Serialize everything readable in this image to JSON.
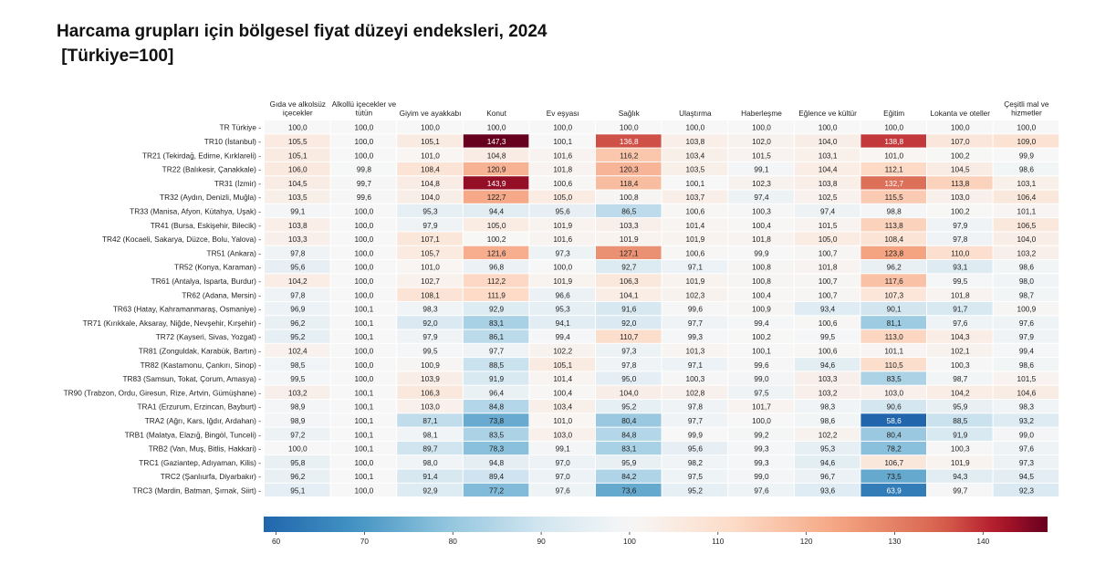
{
  "title_line1": "Harcama grupları için bölgesel fiyat düzeyi endeksleri, 2024",
  "title_line2": " [Türkiye=100]",
  "chart_data": {
    "type": "heatmap",
    "title": "Harcama grupları için bölgesel fiyat düzeyi endeksleri, 2024 [Türkiye=100]",
    "columns": [
      [
        "Gıda ve alkolsüz",
        "içecekler"
      ],
      [
        "Alkollü içecekler ve",
        "tütün"
      ],
      [
        "Giyim ve ayakkabı"
      ],
      [
        "Konut"
      ],
      [
        "Ev eşyası"
      ],
      [
        "Sağlık"
      ],
      [
        "Ulaştırma"
      ],
      [
        "Haberleşme"
      ],
      [
        "Eğlence ve kültür"
      ],
      [
        "Eğitim"
      ],
      [
        "Lokanta ve oteller"
      ],
      [
        "Çeşitli mal ve",
        "hizmetler"
      ]
    ],
    "rows": [
      "TR Türkiye",
      "TR10 (İstanbul)",
      "TR21 (Tekirdağ, Edirne, Kırklareli)",
      "TR22 (Balıkesir, Çanakkale)",
      "TR31 (İzmir)",
      "TR32 (Aydın, Denizli, Muğla)",
      "TR33 (Manisa, Afyon, Kütahya, Uşak)",
      "TR41 (Bursa, Eskişehir, Bilecik)",
      "TR42 (Kocaeli, Sakarya, Düzce, Bolu, Yalova)",
      "TR51 (Ankara)",
      "TR52 (Konya, Karaman)",
      "TR61 (Antalya, Isparta, Burdur)",
      "TR62 (Adana, Mersin)",
      "TR63 (Hatay, Kahramanmaraş, Osmaniye)",
      "TR71 (Kırıkkale, Aksaray, Niğde, Nevşehir, Kırşehir)",
      "TR72 (Kayseri, Sivas, Yozgat)",
      "TR81 (Zonguldak, Karabük, Bartın)",
      "TR82 (Kastamonu, Çankırı, Sinop)",
      "TR83 (Samsun, Tokat, Çorum, Amasya)",
      "TR90 (Trabzon, Ordu, Giresun, Rize, Artvin, Gümüşhane)",
      "TRA1 (Erzurum, Erzincan, Bayburt)",
      "TRA2 (Ağrı, Kars, Iğdır, Ardahan)",
      "TRB1 (Malatya, Elazığ, Bingöl, Tunceli)",
      "TRB2 (Van, Muş, Bitlis, Hakkari)",
      "TRC1 (Gaziantep, Adıyaman, Kilis)",
      "TRC2 (Şanlıurfa, Diyarbakır)",
      "TRC3 (Mardin, Batman, Şırnak, Siirt)"
    ],
    "values": [
      [
        "100,0",
        "100,0",
        "100,0",
        "100,0",
        "100,0",
        "100,0",
        "100,0",
        "100,0",
        "100,0",
        "100,0",
        "100,0",
        "100,0"
      ],
      [
        "105,5",
        "100,0",
        "105,1",
        "147,3",
        "100,1",
        "136,8",
        "103,8",
        "102,0",
        "104,0",
        "138,8",
        "107,0",
        "109,0"
      ],
      [
        "105,1",
        "100,0",
        "101,0",
        "104,8",
        "101,6",
        "116,2",
        "103,4",
        "101,5",
        "103,1",
        "101,0",
        "100,2",
        "99,9"
      ],
      [
        "106,0",
        "99,8",
        "108,4",
        "120,9",
        "101,8",
        "120,3",
        "103,5",
        "99,1",
        "104,4",
        "112,1",
        "104,5",
        "98,6"
      ],
      [
        "104,5",
        "99,7",
        "104,8",
        "143,9",
        "100,6",
        "118,4",
        "100,1",
        "102,3",
        "103,8",
        "132,7",
        "113,8",
        "103,1"
      ],
      [
        "103,5",
        "99,6",
        "104,0",
        "122,7",
        "105,0",
        "100,8",
        "103,7",
        "97,4",
        "102,5",
        "115,5",
        "103,0",
        "106,4"
      ],
      [
        "99,1",
        "100,0",
        "95,3",
        "94,4",
        "95,6",
        "86,5",
        "100,6",
        "100,3",
        "97,4",
        "98,8",
        "100,2",
        "101,1"
      ],
      [
        "103,8",
        "100,0",
        "97,9",
        "105,0",
        "101,9",
        "103,3",
        "101,4",
        "100,4",
        "101,5",
        "113,8",
        "97,9",
        "106,5"
      ],
      [
        "103,3",
        "100,0",
        "107,1",
        "100,2",
        "101,6",
        "101,9",
        "101,9",
        "101,8",
        "105,0",
        "108,4",
        "97,8",
        "104,0"
      ],
      [
        "97,8",
        "100,0",
        "105,7",
        "121,6",
        "97,3",
        "127,1",
        "100,6",
        "99,9",
        "100,7",
        "123,8",
        "110,0",
        "103,2"
      ],
      [
        "95,6",
        "100,0",
        "101,0",
        "96,8",
        "100,0",
        "92,7",
        "97,1",
        "100,8",
        "101,8",
        "96,2",
        "93,1",
        "98,6"
      ],
      [
        "104,2",
        "100,0",
        "102,7",
        "112,2",
        "101,9",
        "106,3",
        "101,9",
        "100,8",
        "100,7",
        "117,6",
        "99,5",
        "98,0"
      ],
      [
        "97,8",
        "100,0",
        "108,1",
        "111,9",
        "96,6",
        "104,1",
        "102,3",
        "100,4",
        "100,7",
        "107,3",
        "101,8",
        "98,7"
      ],
      [
        "96,9",
        "100,1",
        "98,3",
        "92,9",
        "95,3",
        "91,6",
        "99,6",
        "100,9",
        "93,4",
        "90,1",
        "91,7",
        "100,9"
      ],
      [
        "96,2",
        "100,1",
        "92,0",
        "83,1",
        "94,1",
        "92,0",
        "97,7",
        "99,4",
        "100,6",
        "81,1",
        "97,6",
        "97,6"
      ],
      [
        "95,2",
        "100,1",
        "97,9",
        "86,1",
        "99,4",
        "110,7",
        "99,3",
        "100,2",
        "99,5",
        "113,0",
        "104,3",
        "97,9"
      ],
      [
        "102,4",
        "100,0",
        "99,5",
        "97,7",
        "102,2",
        "97,3",
        "101,3",
        "100,1",
        "100,6",
        "101,1",
        "102,1",
        "99,4"
      ],
      [
        "98,5",
        "100,0",
        "100,9",
        "88,5",
        "105,1",
        "97,8",
        "97,1",
        "99,6",
        "94,6",
        "110,5",
        "100,3",
        "98,6"
      ],
      [
        "99,5",
        "100,0",
        "103,9",
        "91,9",
        "101,4",
        "95,0",
        "100,3",
        "99,0",
        "103,3",
        "83,5",
        "98,7",
        "101,5"
      ],
      [
        "103,2",
        "100,1",
        "106,3",
        "96,4",
        "100,4",
        "104,0",
        "102,8",
        "97,5",
        "103,2",
        "103,0",
        "104,2",
        "104,6"
      ],
      [
        "98,9",
        "100,1",
        "103,0",
        "84,8",
        "103,4",
        "95,2",
        "97,8",
        "101,7",
        "98,3",
        "90,6",
        "95,9",
        "98,3"
      ],
      [
        "98,9",
        "100,1",
        "87,1",
        "73,8",
        "101,0",
        "80,4",
        "97,7",
        "100,0",
        "98,6",
        "58,6",
        "88,5",
        "93,2"
      ],
      [
        "97,2",
        "100,1",
        "98,1",
        "83,5",
        "103,0",
        "84,8",
        "99,9",
        "99,2",
        "102,2",
        "80,4",
        "91,9",
        "99,0"
      ],
      [
        "100,0",
        "100,1",
        "89,7",
        "78,3",
        "99,1",
        "83,1",
        "95,6",
        "99,3",
        "95,3",
        "78,2",
        "100,3",
        "97,6"
      ],
      [
        "95,8",
        "100,0",
        "98,0",
        "94,8",
        "97,0",
        "95,9",
        "98,2",
        "99,3",
        "94,6",
        "106,7",
        "101,9",
        "97,3"
      ],
      [
        "96,2",
        "100,1",
        "91,4",
        "89,4",
        "97,0",
        "84,2",
        "97,5",
        "99,0",
        "96,7",
        "73,5",
        "94,3",
        "94,5"
      ],
      [
        "95,1",
        "100,0",
        "92,9",
        "77,2",
        "97,6",
        "73,6",
        "95,2",
        "97,6",
        "93,6",
        "63,9",
        "99,7",
        "92,3"
      ]
    ],
    "colorscale": "RdBu_r",
    "colorbar": {
      "range": [
        58.6,
        147.3
      ],
      "center": 100,
      "ticks": [
        60,
        70,
        80,
        90,
        100,
        110,
        120,
        130,
        140
      ],
      "colors": {
        "low": "#2166ac",
        "mid": "#f7f7f7",
        "high": "#67001f"
      }
    }
  }
}
